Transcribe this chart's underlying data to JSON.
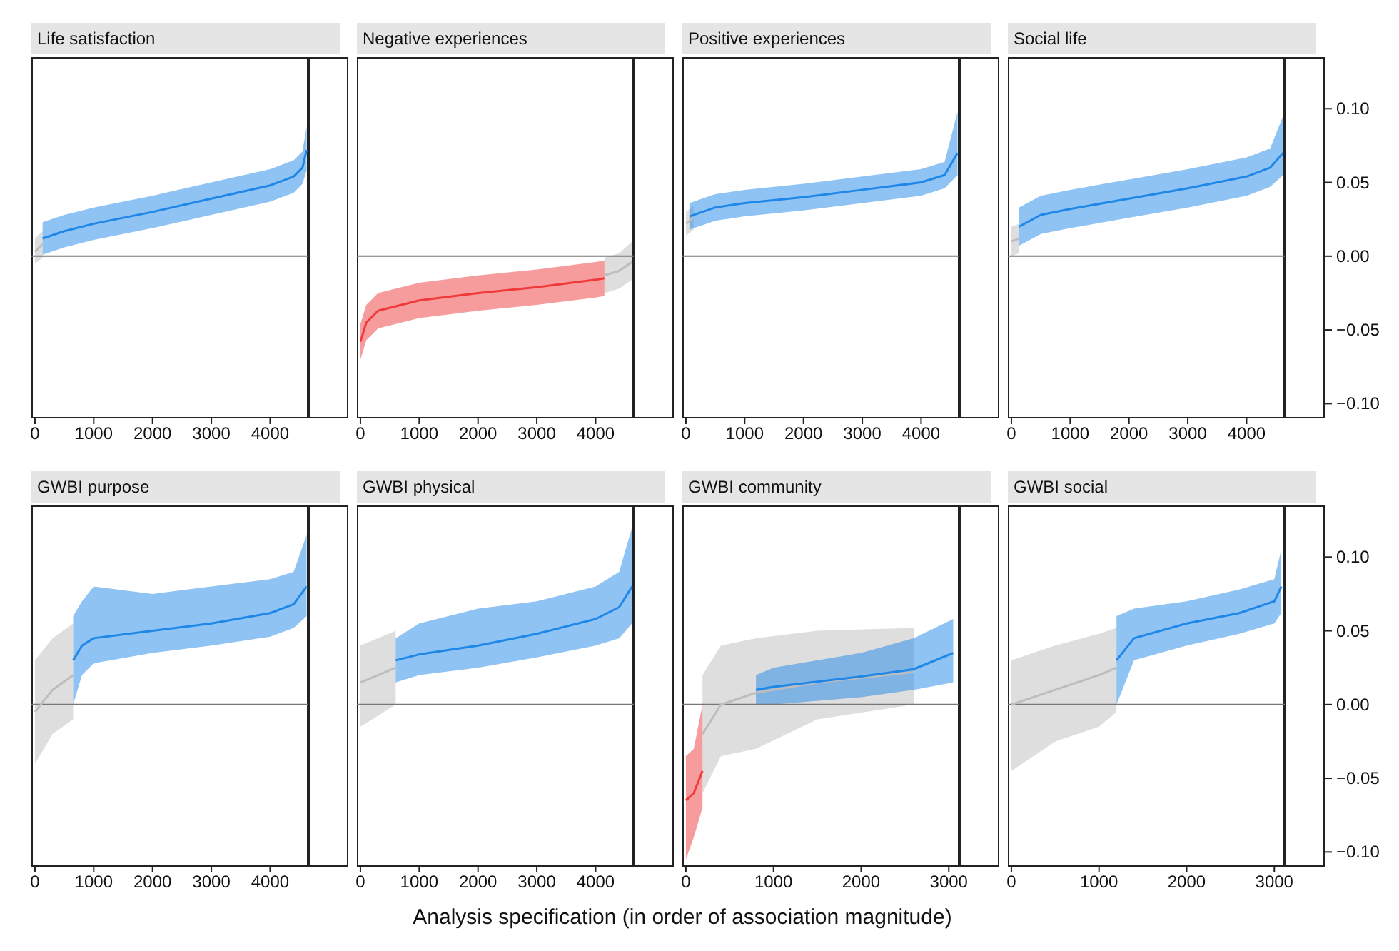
{
  "chart_data": [
    {
      "type": "line",
      "title": "Life satisfaction",
      "xlim": [
        -60,
        4650
      ],
      "xticks": [
        0,
        1000,
        2000,
        3000,
        4000
      ],
      "ylim": [
        -0.11,
        0.135
      ],
      "tick_labels": "x",
      "ref_lines": [
        {
          "axis": "y",
          "value": 0,
          "color": "#777777"
        }
      ],
      "series": [
        {
          "color": "#bdbdbd",
          "x": [
            0,
            130
          ],
          "values": [
            0.003,
            0.008
          ],
          "lower": [
            -0.005,
            -0.001
          ],
          "upper": [
            0.012,
            0.017
          ]
        },
        {
          "color": "#1f87e8",
          "x": [
            130,
            500,
            1000,
            2000,
            3000,
            4000,
            4400,
            4550,
            4620
          ],
          "values": [
            0.012,
            0.017,
            0.022,
            0.03,
            0.039,
            0.048,
            0.054,
            0.06,
            0.072
          ],
          "lower": [
            0.001,
            0.006,
            0.011,
            0.019,
            0.028,
            0.037,
            0.043,
            0.049,
            0.058
          ],
          "upper": [
            0.023,
            0.028,
            0.033,
            0.041,
            0.05,
            0.059,
            0.065,
            0.071,
            0.088
          ]
        }
      ]
    },
    {
      "type": "line",
      "title": "Negative experiences",
      "xlim": [
        -60,
        4650
      ],
      "xticks": [
        0,
        1000,
        2000,
        3000,
        4000
      ],
      "ylim": [
        -0.11,
        0.135
      ],
      "tick_labels": "x",
      "ref_lines": [
        {
          "axis": "y",
          "value": 0,
          "color": "#777777"
        }
      ],
      "series": [
        {
          "color": "#bdbdbd",
          "x": [
            4150,
            4400,
            4620
          ],
          "values": [
            -0.013,
            -0.01,
            -0.004
          ],
          "lower": [
            -0.025,
            -0.022,
            -0.016
          ],
          "upper": [
            -0.001,
            0.002,
            0.01
          ]
        },
        {
          "color": "#f03a3a",
          "x": [
            0,
            100,
            300,
            1000,
            2000,
            3000,
            4000,
            4150
          ],
          "values": [
            -0.058,
            -0.045,
            -0.037,
            -0.03,
            -0.025,
            -0.021,
            -0.016,
            -0.015
          ],
          "lower": [
            -0.07,
            -0.057,
            -0.049,
            -0.042,
            -0.037,
            -0.033,
            -0.028,
            -0.027
          ],
          "upper": [
            -0.046,
            -0.033,
            -0.025,
            -0.018,
            -0.013,
            -0.009,
            -0.004,
            -0.003
          ]
        }
      ]
    },
    {
      "type": "line",
      "title": "Positive experiences",
      "xlim": [
        -60,
        4650
      ],
      "xticks": [
        0,
        1000,
        2000,
        3000,
        4000
      ],
      "ylim": [
        -0.11,
        0.135
      ],
      "tick_labels": "x",
      "ref_lines": [
        {
          "axis": "y",
          "value": 0,
          "color": "#777777"
        }
      ],
      "series": [
        {
          "color": "#bdbdbd",
          "x": [
            0,
            130
          ],
          "values": [
            0.022,
            0.026
          ],
          "lower": [
            0.014,
            0.018
          ],
          "upper": [
            0.03,
            0.034
          ]
        },
        {
          "color": "#1f87e8",
          "x": [
            60,
            500,
            1000,
            2000,
            3000,
            4000,
            4400,
            4620
          ],
          "values": [
            0.027,
            0.033,
            0.036,
            0.04,
            0.045,
            0.05,
            0.055,
            0.07
          ],
          "lower": [
            0.018,
            0.024,
            0.027,
            0.031,
            0.036,
            0.041,
            0.046,
            0.055
          ],
          "upper": [
            0.036,
            0.042,
            0.045,
            0.049,
            0.054,
            0.059,
            0.064,
            0.098
          ]
        }
      ]
    },
    {
      "type": "line",
      "title": "Social life",
      "xlim": [
        -60,
        4650
      ],
      "xticks": [
        0,
        1000,
        2000,
        3000,
        4000
      ],
      "ylim": [
        -0.11,
        0.135
      ],
      "yticks": [
        {
          "value": -0.1,
          "label": "−0.10"
        },
        {
          "value": -0.05,
          "label": "−0.05"
        },
        {
          "value": 0,
          "label": "0.00"
        },
        {
          "value": 0.05,
          "label": "0.05"
        },
        {
          "value": 0.1,
          "label": "0.10"
        }
      ],
      "ref_lines": [
        {
          "axis": "y",
          "value": 0,
          "color": "#777777"
        }
      ],
      "series": [
        {
          "color": "#bdbdbd",
          "x": [
            0,
            130
          ],
          "values": [
            0.01,
            0.012
          ],
          "lower": [
            0.0,
            0.002
          ],
          "upper": [
            0.02,
            0.022
          ]
        },
        {
          "color": "#1f87e8",
          "x": [
            130,
            500,
            1000,
            2000,
            3000,
            4000,
            4400,
            4620
          ],
          "values": [
            0.02,
            0.028,
            0.032,
            0.039,
            0.046,
            0.054,
            0.06,
            0.07
          ],
          "lower": [
            0.007,
            0.015,
            0.019,
            0.026,
            0.033,
            0.041,
            0.047,
            0.055
          ],
          "upper": [
            0.033,
            0.041,
            0.045,
            0.052,
            0.059,
            0.067,
            0.073,
            0.095
          ]
        }
      ]
    },
    {
      "type": "line",
      "title": "GWBI purpose",
      "xlim": [
        -60,
        4650
      ],
      "xticks": [
        0,
        1000,
        2000,
        3000,
        4000
      ],
      "ylim": [
        -0.11,
        0.135
      ],
      "tick_labels": "x",
      "ref_lines": [
        {
          "axis": "y",
          "value": 0,
          "color": "#777777"
        }
      ],
      "series": [
        {
          "color": "#bdbdbd",
          "x": [
            0,
            300,
            650
          ],
          "values": [
            -0.005,
            0.01,
            0.02
          ],
          "lower": [
            -0.04,
            -0.02,
            -0.01
          ],
          "upper": [
            0.03,
            0.045,
            0.055
          ]
        },
        {
          "color": "#1f87e8",
          "x": [
            650,
            800,
            1000,
            2000,
            3000,
            4000,
            4400,
            4620
          ],
          "values": [
            0.03,
            0.04,
            0.045,
            0.05,
            0.055,
            0.062,
            0.068,
            0.08
          ],
          "lower": [
            0.0,
            0.02,
            0.028,
            0.035,
            0.04,
            0.046,
            0.052,
            0.06
          ],
          "upper": [
            0.06,
            0.07,
            0.08,
            0.075,
            0.08,
            0.085,
            0.09,
            0.115
          ]
        }
      ]
    },
    {
      "type": "line",
      "title": "GWBI physical",
      "xlim": [
        -60,
        4650
      ],
      "xticks": [
        0,
        1000,
        2000,
        3000,
        4000
      ],
      "ylim": [
        -0.11,
        0.135
      ],
      "tick_labels": "x",
      "xlabel": "Analysis specification (in order of association magnitude)",
      "ref_lines": [
        {
          "axis": "y",
          "value": 0,
          "color": "#777777"
        }
      ],
      "series": [
        {
          "color": "#bdbdbd",
          "x": [
            0,
            600
          ],
          "values": [
            0.015,
            0.025
          ],
          "lower": [
            -0.015,
            0.0
          ],
          "upper": [
            0.04,
            0.05
          ]
        },
        {
          "color": "#1f87e8",
          "x": [
            600,
            1000,
            2000,
            3000,
            4000,
            4400,
            4620
          ],
          "values": [
            0.03,
            0.034,
            0.04,
            0.048,
            0.058,
            0.066,
            0.08
          ],
          "lower": [
            0.015,
            0.02,
            0.025,
            0.032,
            0.04,
            0.045,
            0.055
          ],
          "upper": [
            0.045,
            0.055,
            0.065,
            0.07,
            0.08,
            0.09,
            0.12
          ]
        }
      ]
    },
    {
      "type": "line",
      "title": "GWBI community",
      "xlim": [
        -40,
        3120
      ],
      "xticks": [
        0,
        1000,
        2000,
        3000
      ],
      "ylim": [
        -0.11,
        0.135
      ],
      "tick_labels": "x",
      "ref_lines": [
        {
          "axis": "y",
          "value": 0,
          "color": "#777777"
        }
      ],
      "series": [
        {
          "color": "#bdbdbd",
          "x": [
            190,
            400,
            800,
            1500,
            2600
          ],
          "values": [
            -0.02,
            0.0,
            0.008,
            0.015,
            0.022
          ],
          "lower": [
            -0.06,
            -0.035,
            -0.03,
            -0.01,
            0.0
          ],
          "upper": [
            0.02,
            0.04,
            0.045,
            0.05,
            0.052
          ]
        },
        {
          "color": "#f03a3a",
          "x": [
            0,
            90,
            190
          ],
          "values": [
            -0.065,
            -0.06,
            -0.045
          ],
          "lower": [
            -0.105,
            -0.09,
            -0.07
          ],
          "upper": [
            -0.035,
            -0.03,
            0.0
          ]
        },
        {
          "color": "#1f87e8",
          "x": [
            800,
            1000,
            2000,
            2600,
            3050
          ],
          "values": [
            0.01,
            0.012,
            0.019,
            0.024,
            0.035
          ],
          "lower": [
            0.0,
            0.0,
            0.005,
            0.01,
            0.015
          ],
          "upper": [
            0.02,
            0.025,
            0.035,
            0.045,
            0.058
          ]
        }
      ]
    },
    {
      "type": "line",
      "title": "GWBI social",
      "xlim": [
        -40,
        3120
      ],
      "xticks": [
        0,
        1000,
        2000,
        3000
      ],
      "ylim": [
        -0.11,
        0.135
      ],
      "yticks": [
        {
          "value": -0.1,
          "label": "−0.10"
        },
        {
          "value": -0.05,
          "label": "−0.05"
        },
        {
          "value": 0,
          "label": "0.00"
        },
        {
          "value": 0.05,
          "label": "0.05"
        },
        {
          "value": 0.1,
          "label": "0.10"
        }
      ],
      "ref_lines": [
        {
          "axis": "y",
          "value": 0,
          "color": "#777777"
        }
      ],
      "series": [
        {
          "color": "#bdbdbd",
          "x": [
            0,
            500,
            1000,
            1200
          ],
          "values": [
            0.0,
            0.01,
            0.02,
            0.025
          ],
          "lower": [
            -0.045,
            -0.025,
            -0.015,
            -0.005
          ],
          "upper": [
            0.03,
            0.04,
            0.048,
            0.052
          ]
        },
        {
          "color": "#1f87e8",
          "x": [
            1200,
            1400,
            2000,
            2600,
            3000,
            3080
          ],
          "values": [
            0.03,
            0.045,
            0.055,
            0.062,
            0.07,
            0.08
          ],
          "lower": [
            0.0,
            0.03,
            0.04,
            0.048,
            0.055,
            0.062
          ],
          "upper": [
            0.06,
            0.065,
            0.07,
            0.078,
            0.085,
            0.105
          ]
        }
      ]
    }
  ]
}
